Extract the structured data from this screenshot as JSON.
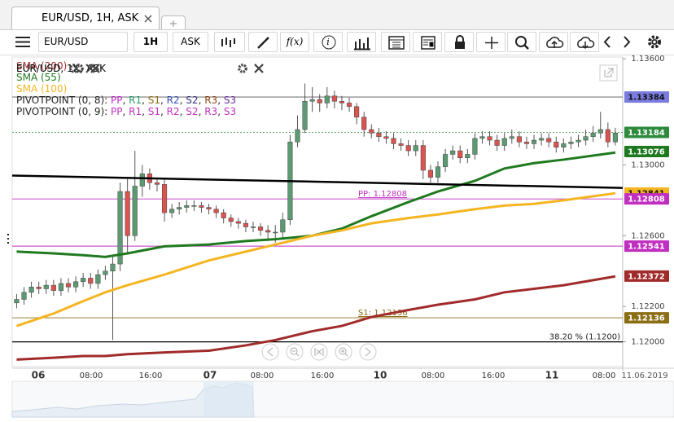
{
  "tab": {
    "label": "EUR/USD, 1H, ASK"
  },
  "toolbar": {
    "symbol": "EUR/USD",
    "timeframe": "1H",
    "price_type": "ASK",
    "function_label": "f(x)",
    "info_label": "i"
  },
  "chart_data": {
    "type": "candlestick",
    "title": "EUR/USD, 1H, ASK",
    "open": [
      1.1222,
      1.1224,
      1.1228,
      1.1231,
      1.123,
      1.1232,
      1.1229,
      1.1233,
      1.1231,
      1.1234,
      1.1236,
      1.1233,
      1.1238,
      1.124,
      1.1244,
      1.1285,
      1.126,
      1.1288,
      1.1295,
      1.129,
      1.1289,
      1.1273,
      1.1275,
      1.1276,
      1.1277,
      1.1277,
      1.1276,
      1.1275,
      1.1273,
      1.127,
      1.1268,
      1.1267,
      1.1265,
      1.1265,
      1.1263,
      1.1262,
      1.1262,
      1.1269,
      1.1313,
      1.132,
      1.1336,
      1.1337,
      1.1335,
      1.1339,
      1.1336,
      1.1335,
      1.1333,
      1.1327,
      1.132,
      1.1318,
      1.1316,
      1.1315,
      1.1312,
      1.1311,
      1.1308,
      1.1311,
      1.1297,
      1.1293,
      1.1299,
      1.1306,
      1.1308,
      1.1304,
      1.1306,
      1.1315,
      1.1316,
      1.1314,
      1.1311,
      1.1315,
      1.1316,
      1.1313,
      1.1312,
      1.1314,
      1.1315,
      1.1313,
      1.131,
      1.1312,
      1.1313,
      1.1314,
      1.1316,
      1.1318,
      1.132,
      1.1313
    ],
    "high": [
      1.1227,
      1.1231,
      1.1234,
      1.1234,
      1.1235,
      1.1235,
      1.1236,
      1.1236,
      1.1237,
      1.1239,
      1.1239,
      1.1241,
      1.1243,
      1.1248,
      1.129,
      1.1292,
      1.1308,
      1.13,
      1.1298,
      1.1293,
      1.1292,
      1.1278,
      1.1279,
      1.128,
      1.128,
      1.1279,
      1.1278,
      1.1277,
      1.1275,
      1.1272,
      1.127,
      1.1269,
      1.1268,
      1.1267,
      1.1266,
      1.1266,
      1.1273,
      1.1317,
      1.1328,
      1.1346,
      1.1344,
      1.134,
      1.1344,
      1.1342,
      1.1339,
      1.1338,
      1.1335,
      1.133,
      1.1323,
      1.1321,
      1.1319,
      1.1318,
      1.1315,
      1.1314,
      1.1314,
      1.1314,
      1.13,
      1.1302,
      1.1309,
      1.1311,
      1.1311,
      1.1309,
      1.1318,
      1.1319,
      1.1319,
      1.1317,
      1.1318,
      1.132,
      1.1319,
      1.1316,
      1.1317,
      1.1318,
      1.1318,
      1.1316,
      1.1315,
      1.1316,
      1.1317,
      1.132,
      1.1322,
      1.133,
      1.1324,
      1.1321
    ],
    "low": [
      1.1219,
      1.1221,
      1.1225,
      1.1227,
      1.1227,
      1.1226,
      1.1226,
      1.1228,
      1.1228,
      1.1231,
      1.123,
      1.123,
      1.1235,
      1.1201,
      1.124,
      1.125,
      1.1257,
      1.1282,
      1.1286,
      1.1285,
      1.1268,
      1.127,
      1.1272,
      1.1273,
      1.1274,
      1.1273,
      1.1272,
      1.127,
      1.1267,
      1.1265,
      1.1264,
      1.1262,
      1.1262,
      1.126,
      1.1257,
      1.1256,
      1.1259,
      1.1266,
      1.131,
      1.1318,
      1.133,
      1.133,
      1.1332,
      1.1332,
      1.1331,
      1.133,
      1.1323,
      1.1316,
      1.1315,
      1.1313,
      1.1312,
      1.1309,
      1.1308,
      1.1305,
      1.1305,
      1.1292,
      1.129,
      1.129,
      1.1296,
      1.1303,
      1.1301,
      1.1301,
      1.1303,
      1.1312,
      1.1311,
      1.1308,
      1.1308,
      1.1312,
      1.131,
      1.1309,
      1.1309,
      1.1311,
      1.131,
      1.1307,
      1.1307,
      1.1309,
      1.131,
      1.1311,
      1.1313,
      1.1315,
      1.131,
      1.1311
    ],
    "close": [
      1.1224,
      1.1228,
      1.1231,
      1.123,
      1.1232,
      1.1229,
      1.1233,
      1.1231,
      1.1234,
      1.1236,
      1.1233,
      1.1238,
      1.124,
      1.1244,
      1.1285,
      1.126,
      1.1288,
      1.1295,
      1.129,
      1.1289,
      1.1273,
      1.1275,
      1.1276,
      1.1277,
      1.1277,
      1.1276,
      1.1275,
      1.1273,
      1.127,
      1.1268,
      1.1267,
      1.1265,
      1.1265,
      1.1263,
      1.1262,
      1.1262,
      1.1269,
      1.1313,
      1.132,
      1.1336,
      1.1337,
      1.1335,
      1.1339,
      1.1336,
      1.1335,
      1.1333,
      1.1327,
      1.132,
      1.1318,
      1.1316,
      1.1315,
      1.1312,
      1.1311,
      1.1308,
      1.1311,
      1.1297,
      1.1293,
      1.1299,
      1.1306,
      1.1308,
      1.1304,
      1.1306,
      1.1315,
      1.1316,
      1.1314,
      1.1311,
      1.1315,
      1.1316,
      1.1313,
      1.1312,
      1.1314,
      1.1315,
      1.1313,
      1.131,
      1.1312,
      1.1313,
      1.1314,
      1.1316,
      1.1318,
      1.132,
      1.1313,
      1.1318
    ],
    "up_color": "#5b9a72",
    "down_color": "#d9534f",
    "series": [
      {
        "name": "SMA (200)",
        "color": "#a12b2b",
        "x": [
          0,
          5,
          9,
          12,
          15,
          20,
          26,
          31,
          35,
          40,
          44,
          48,
          53,
          57,
          62,
          66,
          70,
          74,
          81
        ],
        "values": [
          1.119,
          1.1191,
          1.1192,
          1.1192,
          1.1193,
          1.1194,
          1.1195,
          1.1198,
          1.1201,
          1.1206,
          1.1209,
          1.1214,
          1.1218,
          1.1221,
          1.1224,
          1.1228,
          1.123,
          1.1232,
          1.1237
        ]
      },
      {
        "name": "SMA (55)",
        "color": "#1f7a1f",
        "x": [
          0,
          5,
          9,
          12,
          15,
          20,
          26,
          31,
          35,
          40,
          44,
          48,
          53,
          57,
          62,
          66,
          70,
          74,
          81
        ],
        "values": [
          1.1251,
          1.125,
          1.1249,
          1.1248,
          1.125,
          1.1254,
          1.1255,
          1.1257,
          1.1258,
          1.126,
          1.1264,
          1.1271,
          1.1279,
          1.1285,
          1.1291,
          1.1298,
          1.1301,
          1.1303,
          1.1307
        ]
      },
      {
        "name": "SMA (100)",
        "color": "#f5b521",
        "x": [
          0,
          5,
          9,
          12,
          15,
          20,
          26,
          31,
          35,
          40,
          44,
          48,
          53,
          57,
          62,
          66,
          70,
          74,
          81
        ],
        "values": [
          1.1209,
          1.1216,
          1.1223,
          1.1228,
          1.1232,
          1.1238,
          1.1246,
          1.1251,
          1.1255,
          1.126,
          1.1263,
          1.1267,
          1.127,
          1.1272,
          1.1275,
          1.1277,
          1.1278,
          1.128,
          1.1284
        ]
      }
    ],
    "pivots": [
      {
        "name": "PIVOTPOINT (0, 8)",
        "levels": [
          {
            "sep": ": ",
            "name": "PP",
            "color": "#c02fc0"
          },
          {
            "sep": ", ",
            "name": "R1",
            "color": "#2a9a6a"
          },
          {
            "sep": ", ",
            "name": "S1",
            "color": "#8b6d14"
          },
          {
            "sep": ", ",
            "name": "R2",
            "color": "#3050b0"
          },
          {
            "sep": ", ",
            "name": "S2",
            "color": "#303080"
          },
          {
            "sep": ", ",
            "name": "R3",
            "color": "#8b4513"
          },
          {
            "sep": ", ",
            "name": "S3",
            "color": "#6a2a9a"
          }
        ]
      },
      {
        "name": "PIVOTPOINT (0, 9)",
        "levels": [
          {
            "sep": ": ",
            "name": "PP",
            "color": "#c02fc0"
          },
          {
            "sep": ", ",
            "name": "R1",
            "color": "#c02fc0"
          },
          {
            "sep": ", ",
            "name": "S1",
            "color": "#c02fc0"
          },
          {
            "sep": ", ",
            "name": "R2",
            "color": "#c02fc0"
          },
          {
            "sep": ", ",
            "name": "S2",
            "color": "#c02fc0"
          },
          {
            "sep": ", ",
            "name": "R3",
            "color": "#c02fc0"
          },
          {
            "sep": ", ",
            "name": "S3",
            "color": "#c02fc0"
          }
        ]
      }
    ],
    "xlim": [
      -0.6,
      82
    ],
    "ylim": [
      1.1186,
      1.1361
    ],
    "yticks": [
      {
        "value": 1.136,
        "label": "1.13600"
      },
      {
        "value": 1.13,
        "label": "1.13000"
      },
      {
        "value": 1.126,
        "label": "1.12600"
      },
      {
        "value": 1.122,
        "label": "1.12200"
      },
      {
        "value": 1.12,
        "label": "1.12000"
      }
    ],
    "x_labels": [
      "06",
      "08:00",
      "16:00",
      "07",
      "08:00",
      "16:00",
      "10",
      "08:00",
      "16:00",
      "11",
      "08:00"
    ],
    "date_label": "11.06.2019",
    "trendline": {
      "values": [
        1.1294,
        1.1287
      ]
    },
    "horizontal_lines": [
      {
        "value": 1.13384,
        "color": "#555555"
      },
      {
        "value": 1.12808,
        "color": "#c02fc0",
        "label": "PP: 1.12808"
      },
      {
        "value": 1.12541,
        "color": "#c02fc0"
      },
      {
        "value": 1.12136,
        "color": "#8b6d14",
        "label": "S1: 1.12136"
      },
      {
        "value": 1.12,
        "color": "#000000",
        "label": "38.20 % (1.1200)"
      }
    ],
    "current_price": {
      "value": 1.13184,
      "color": "#2e8b3e"
    },
    "price_badges": [
      {
        "value": 1.13384,
        "color": "#7b7be0"
      },
      {
        "value": 1.13076,
        "color": "#1f7a1f"
      },
      {
        "value": 1.12841,
        "color": "#f5b521"
      },
      {
        "value": 1.12808,
        "color": "#c02fc0"
      },
      {
        "value": 1.12541,
        "color": "#c02fc0"
      },
      {
        "value": 1.12372,
        "color": "#a12b2b"
      },
      {
        "value": 1.12136,
        "color": "#8b6d14"
      }
    ]
  }
}
